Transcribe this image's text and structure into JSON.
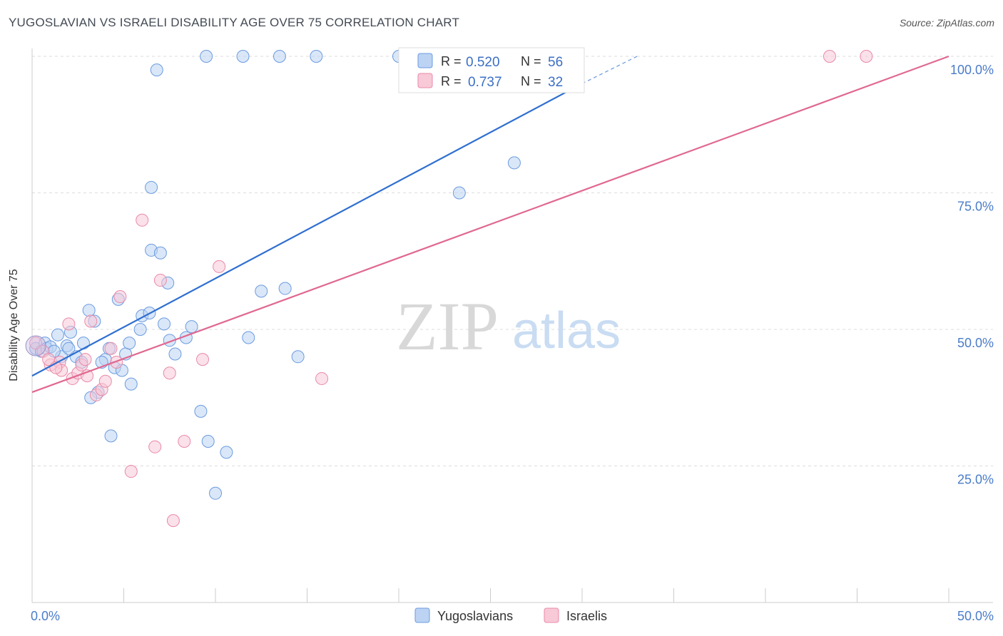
{
  "header": {
    "title": "YUGOSLAVIAN VS ISRAELI DISABILITY AGE OVER 75 CORRELATION CHART",
    "source": "Source: ZipAtlas.com"
  },
  "watermark": {
    "zip": "ZIP",
    "atlas": "atlas"
  },
  "chart_data": {
    "type": "scatter",
    "ylabel": "Disability Age Over 75",
    "xlim": [
      0,
      50
    ],
    "ylim": [
      0,
      100
    ],
    "x_ticks": [
      {
        "value": 0,
        "label": "0.0%"
      },
      {
        "value": 50,
        "label": "50.0%"
      }
    ],
    "y_ticks": [
      {
        "value": 25,
        "label": "25.0%"
      },
      {
        "value": 50,
        "label": "50.0%"
      },
      {
        "value": 75,
        "label": "75.0%"
      },
      {
        "value": 100,
        "label": "100.0%"
      }
    ],
    "grid": true,
    "legend": {
      "placement": "top-center",
      "entries": [
        {
          "r_label": "R =",
          "r": "0.520",
          "n_label": "N =",
          "n": "56"
        },
        {
          "r_label": "R =",
          "r": "0.737",
          "n_label": "N =",
          "n": "32"
        }
      ]
    },
    "series": [
      {
        "name": "Yugoslavians",
        "color": "#6b9be0",
        "fill": "#bcd3f3",
        "trend_color": "#2f6fd0",
        "trend": {
          "x0": 0,
          "y0": 41.5,
          "x1": 30,
          "y1": 95,
          "dash_to_x": 33,
          "dash_to_y": 100
        },
        "points": [
          [
            0.2,
            46.5
          ],
          [
            0.5,
            46.0
          ],
          [
            0.7,
            47.5
          ],
          [
            0.8,
            46.5
          ],
          [
            1.0,
            46.8
          ],
          [
            1.4,
            49.0
          ],
          [
            1.6,
            45.0
          ],
          [
            1.9,
            47.0
          ],
          [
            2.1,
            49.5
          ],
          [
            2.4,
            45.0
          ],
          [
            2.7,
            44.0
          ],
          [
            2.8,
            47.5
          ],
          [
            3.1,
            53.5
          ],
          [
            3.4,
            51.5
          ],
          [
            3.6,
            38.5
          ],
          [
            3.2,
            37.5
          ],
          [
            4.0,
            44.5
          ],
          [
            4.2,
            46.5
          ],
          [
            4.5,
            43.0
          ],
          [
            4.7,
            55.5
          ],
          [
            4.9,
            42.5
          ],
          [
            5.1,
            45.5
          ],
          [
            5.3,
            47.5
          ],
          [
            5.4,
            40.0
          ],
          [
            5.9,
            50.0
          ],
          [
            6.0,
            52.5
          ],
          [
            6.4,
            53.0
          ],
          [
            6.5,
            64.5
          ],
          [
            7.0,
            64.0
          ],
          [
            7.2,
            51.0
          ],
          [
            7.4,
            58.5
          ],
          [
            7.5,
            48.0
          ],
          [
            7.8,
            45.5
          ],
          [
            8.4,
            48.5
          ],
          [
            8.7,
            50.5
          ],
          [
            9.2,
            35.0
          ],
          [
            9.6,
            29.5
          ],
          [
            10.0,
            20.0
          ],
          [
            10.6,
            27.5
          ],
          [
            11.8,
            48.5
          ],
          [
            12.5,
            57.0
          ],
          [
            13.8,
            57.5
          ],
          [
            14.5,
            45.0
          ],
          [
            6.5,
            76.0
          ],
          [
            6.8,
            97.5
          ],
          [
            9.5,
            100.0
          ],
          [
            11.5,
            100.0
          ],
          [
            13.5,
            100.0
          ],
          [
            15.5,
            100.0
          ],
          [
            20.0,
            100.0
          ],
          [
            23.3,
            75.0
          ],
          [
            26.3,
            80.5
          ],
          [
            4.3,
            30.5
          ],
          [
            2.0,
            46.5
          ],
          [
            1.2,
            46.0
          ],
          [
            3.8,
            44.0
          ]
        ]
      },
      {
        "name": "Israelis",
        "color": "#e98aa8",
        "fill": "#f8c9d7",
        "trend_color": "#e06890",
        "trend": {
          "x0": 0,
          "y0": 38.5,
          "x1": 50,
          "y1": 100
        },
        "points": [
          [
            0.2,
            47.5
          ],
          [
            0.6,
            46.0
          ],
          [
            1.0,
            43.5
          ],
          [
            1.5,
            44.0
          ],
          [
            1.6,
            42.5
          ],
          [
            2.0,
            51.0
          ],
          [
            2.2,
            41.0
          ],
          [
            2.5,
            42.0
          ],
          [
            2.7,
            43.5
          ],
          [
            3.0,
            41.5
          ],
          [
            3.2,
            51.5
          ],
          [
            3.5,
            38.0
          ],
          [
            3.8,
            39.0
          ],
          [
            4.0,
            40.5
          ],
          [
            4.3,
            46.5
          ],
          [
            4.6,
            44.0
          ],
          [
            4.8,
            56.0
          ],
          [
            5.4,
            24.0
          ],
          [
            6.0,
            70.0
          ],
          [
            6.7,
            28.5
          ],
          [
            7.0,
            59.0
          ],
          [
            7.5,
            42.0
          ],
          [
            7.7,
            15.0
          ],
          [
            8.3,
            29.5
          ],
          [
            9.3,
            44.5
          ],
          [
            10.2,
            61.5
          ],
          [
            15.8,
            41.0
          ],
          [
            43.5,
            100.0
          ],
          [
            45.5,
            100.0
          ],
          [
            0.9,
            44.5
          ],
          [
            1.3,
            43.0
          ],
          [
            2.9,
            44.5
          ]
        ]
      }
    ]
  }
}
